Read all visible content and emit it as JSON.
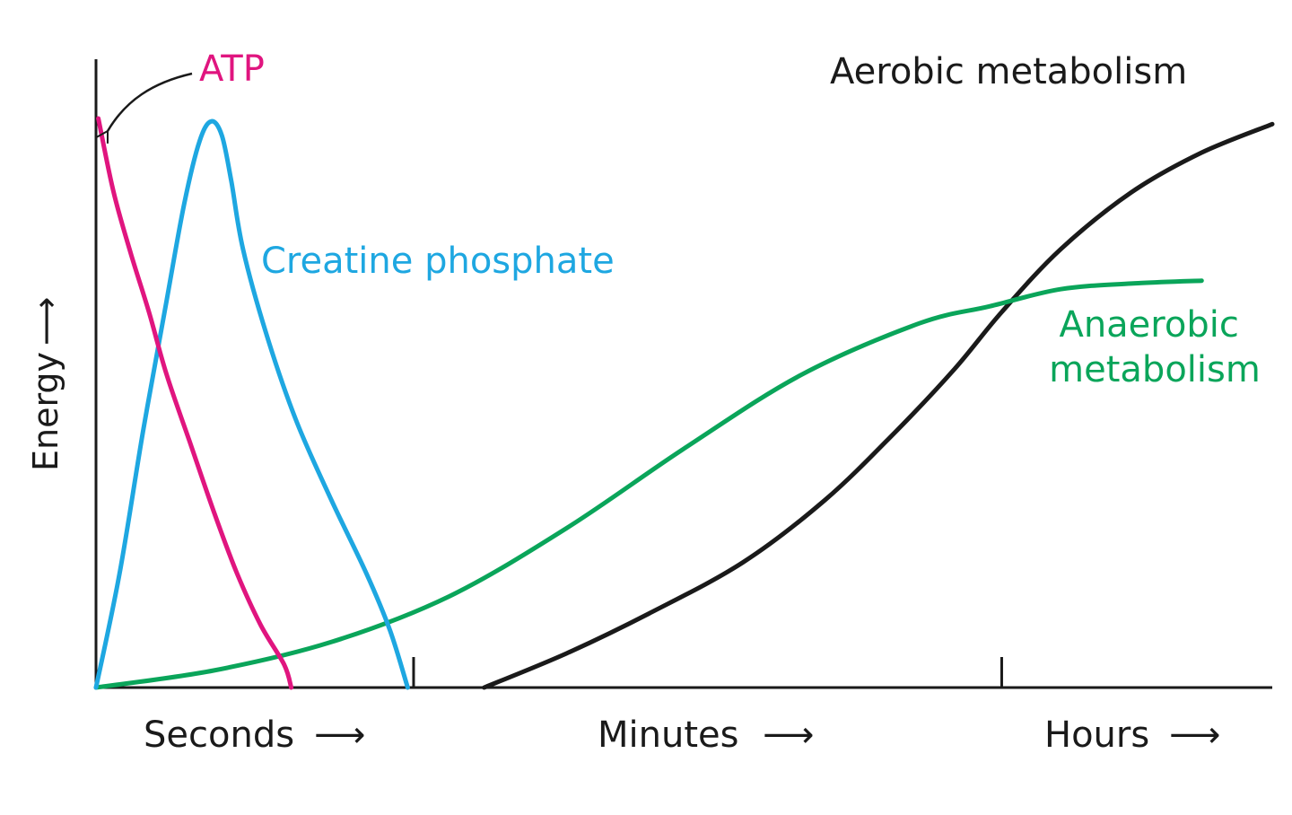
{
  "chart_data": {
    "type": "line",
    "xlabel": "",
    "ylabel": "Energy",
    "ylabel_arrow": "⟶",
    "xlim": [
      0,
      100
    ],
    "ylim": [
      0,
      100
    ],
    "grid": false,
    "x_segments": [
      {
        "label": "Seconds",
        "arrow": "⟶"
      },
      {
        "label": "Minutes",
        "arrow": "⟶"
      },
      {
        "label": "Hours",
        "arrow": "⟶"
      }
    ],
    "x_tick_positions": [
      27,
      77
    ],
    "colors": {
      "atp": "#e0157f",
      "creatine": "#1ea7e1",
      "anaerobic": "#0aa55a",
      "aerobic": "#1a1a1a",
      "axis": "#1a1a1a"
    },
    "series": [
      {
        "name": "ATP",
        "color": "#e0157f",
        "points": [
          [
            0.2,
            100
          ],
          [
            1.5,
            87
          ],
          [
            3,
            76
          ],
          [
            4.5,
            66
          ],
          [
            6,
            55
          ],
          [
            8,
            43
          ],
          [
            10,
            31
          ],
          [
            12,
            20
          ],
          [
            14,
            11
          ],
          [
            16,
            4
          ],
          [
            16.6,
            0
          ]
        ]
      },
      {
        "name": "Creatine phosphate",
        "color": "#1ea7e1",
        "points": [
          [
            0,
            0
          ],
          [
            2,
            20
          ],
          [
            4,
            45
          ],
          [
            6,
            68
          ],
          [
            7.5,
            85
          ],
          [
            8.8,
            96
          ],
          [
            9.8,
            99.5
          ],
          [
            10.7,
            97
          ],
          [
            11.5,
            89
          ],
          [
            12.5,
            77
          ],
          [
            14.5,
            62
          ],
          [
            17,
            47
          ],
          [
            20,
            33
          ],
          [
            23,
            20
          ],
          [
            25,
            10
          ],
          [
            26.5,
            0
          ]
        ]
      },
      {
        "name": "Anaerobic\nmetabolism",
        "color": "#0aa55a",
        "points": [
          [
            0,
            0
          ],
          [
            10,
            3
          ],
          [
            20,
            8
          ],
          [
            30,
            16
          ],
          [
            40,
            28
          ],
          [
            50,
            42
          ],
          [
            60,
            55
          ],
          [
            70,
            64
          ],
          [
            76,
            67
          ],
          [
            82,
            70
          ],
          [
            88,
            71
          ],
          [
            94,
            71.5
          ]
        ]
      },
      {
        "name": "Aerobic metabolism",
        "color": "#1a1a1a",
        "points": [
          [
            33,
            0
          ],
          [
            40,
            6
          ],
          [
            47,
            13
          ],
          [
            55,
            22
          ],
          [
            62,
            33
          ],
          [
            68,
            45
          ],
          [
            73,
            56
          ],
          [
            77,
            66
          ],
          [
            82,
            77
          ],
          [
            88,
            87
          ],
          [
            94,
            94
          ],
          [
            100,
            99
          ]
        ]
      }
    ],
    "annotations": [
      {
        "series": "ATP",
        "text": "ATP",
        "arrow": true
      }
    ]
  }
}
